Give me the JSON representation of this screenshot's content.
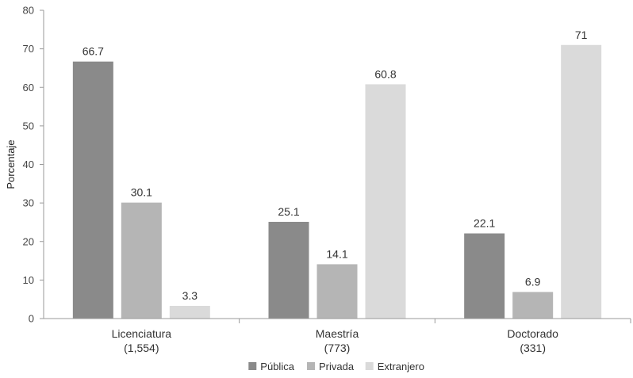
{
  "chart_data": {
    "type": "bar",
    "ylabel": "Porcentaje",
    "ylim": [
      0,
      80
    ],
    "yticks": [
      0,
      10,
      20,
      30,
      40,
      50,
      60,
      70,
      80
    ],
    "categories": [
      {
        "name": "Licenciatura",
        "count": "(1,554)"
      },
      {
        "name": "Maestría",
        "count": "(773)"
      },
      {
        "name": "Doctorado",
        "count": "(331)"
      }
    ],
    "series": [
      {
        "name": "Pública",
        "color": "#8a8a8a",
        "values": [
          66.7,
          25.1,
          22.1
        ],
        "labels": [
          "66.7",
          "25.1",
          "22.1"
        ]
      },
      {
        "name": "Privada",
        "color": "#b5b5b5",
        "values": [
          30.1,
          14.1,
          6.9
        ],
        "labels": [
          "30.1",
          "14.1",
          "6.9"
        ]
      },
      {
        "name": "Extranjero",
        "color": "#dadada",
        "values": [
          3.3,
          60.8,
          71
        ],
        "labels": [
          "3.3",
          "60.8",
          "71"
        ]
      }
    ],
    "legend_position": "bottom-center",
    "grid": false
  }
}
